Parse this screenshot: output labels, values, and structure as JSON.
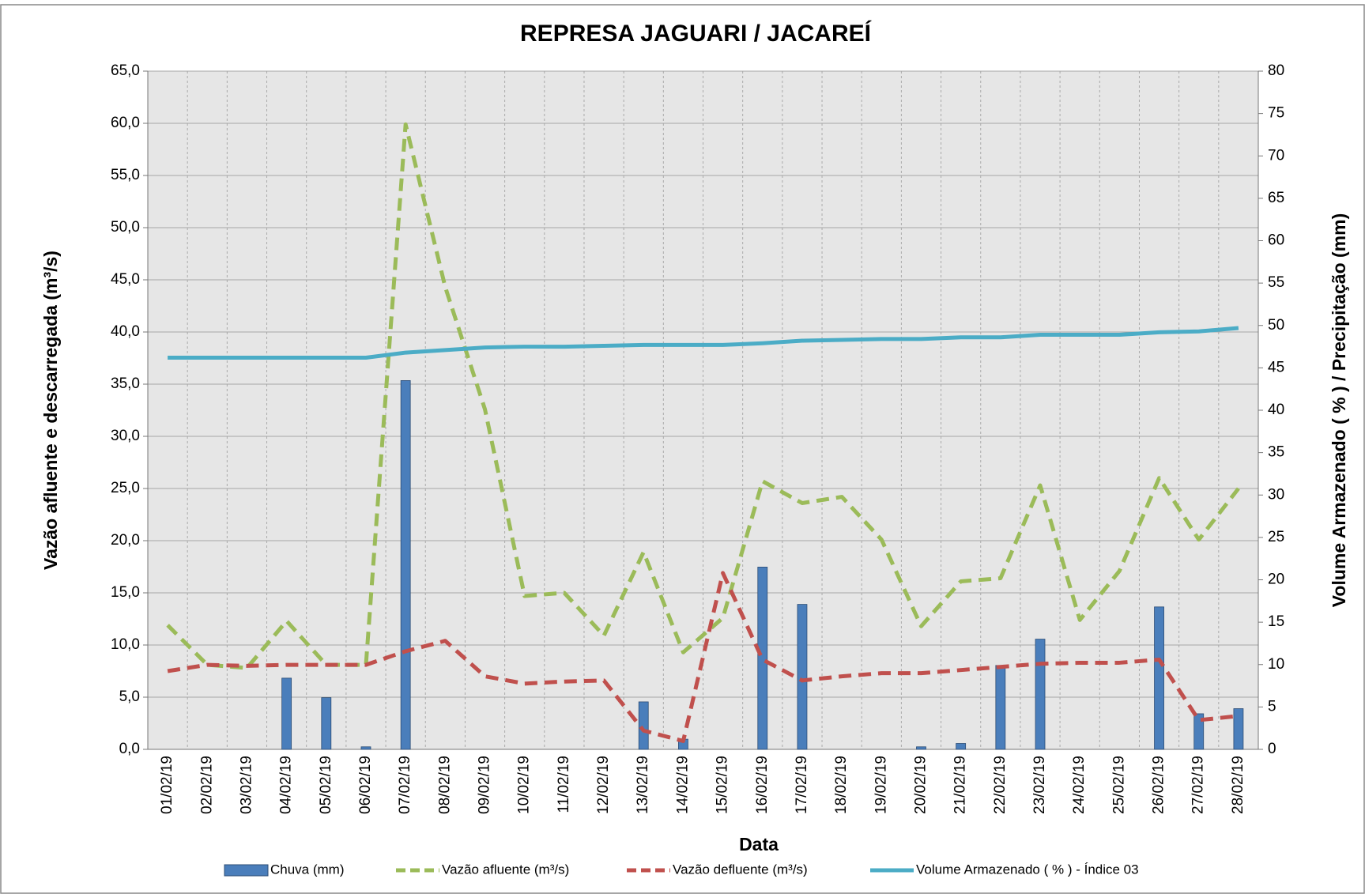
{
  "chart_data": {
    "type": "combo",
    "title": "REPRESA JAGUARI / JACAREÍ",
    "x_label": "Data",
    "y_label": "Vazão afluente e descarregada (m³/s)",
    "y2_label": "Volume Armazenado ( % ) / Precipitação  (mm)",
    "categories": [
      "01/02/19",
      "02/02/19",
      "03/02/19",
      "04/02/19",
      "05/02/19",
      "06/02/19",
      "07/02/19",
      "08/02/19",
      "09/02/19",
      "10/02/19",
      "11/02/19",
      "12/02/19",
      "13/02/19",
      "14/02/19",
      "15/02/19",
      "16/02/19",
      "17/02/19",
      "18/02/19",
      "19/02/19",
      "20/02/19",
      "21/02/19",
      "22/02/19",
      "23/02/19",
      "24/02/19",
      "25/02/19",
      "26/02/19",
      "27/02/19",
      "28/02/19"
    ],
    "ylim": [
      0,
      65
    ],
    "yticks": [
      {
        "value": 0,
        "label": "0,0"
      },
      {
        "value": 5,
        "label": "5,0"
      },
      {
        "value": 10,
        "label": "10,0"
      },
      {
        "value": 15,
        "label": "15,0"
      },
      {
        "value": 20,
        "label": "20,0"
      },
      {
        "value": 25,
        "label": "25,0"
      },
      {
        "value": 30,
        "label": "30,0"
      },
      {
        "value": 35,
        "label": "35,0"
      },
      {
        "value": 40,
        "label": "40,0"
      },
      {
        "value": 45,
        "label": "45,0"
      },
      {
        "value": 50,
        "label": "50,0"
      },
      {
        "value": 55,
        "label": "55,0"
      },
      {
        "value": 60,
        "label": "60,0"
      },
      {
        "value": 65,
        "label": "65,0"
      }
    ],
    "y2lim": [
      0,
      80
    ],
    "y2ticks": [
      0,
      5,
      10,
      15,
      20,
      25,
      30,
      35,
      40,
      45,
      50,
      55,
      60,
      65,
      70,
      75,
      80
    ],
    "grid": true,
    "legend": "bottom",
    "series": [
      {
        "name": "Chuva (mm)",
        "type": "bar",
        "axis": "y2",
        "color": "#4a7ebb",
        "values": [
          0,
          0,
          0,
          8.4,
          6.1,
          0.3,
          43.5,
          0,
          0,
          0,
          0,
          0,
          5.6,
          1.2,
          0,
          21.5,
          17.1,
          0,
          0,
          0.3,
          0.7,
          9.9,
          13.0,
          0,
          0,
          16.8,
          4.2,
          4.8
        ]
      },
      {
        "name": "Vazão afluente (m³/s)",
        "type": "line",
        "dash": true,
        "color": "#9bbb59",
        "values": [
          11.9,
          8.1,
          7.8,
          12.3,
          8.1,
          8.1,
          59.9,
          44.3,
          32.6,
          14.7,
          15.0,
          10.9,
          18.9,
          9.3,
          12.6,
          25.7,
          23.6,
          24.2,
          20.1,
          11.8,
          16.1,
          16.4,
          25.3,
          12.4,
          17.1,
          26.0,
          20.1,
          25.0
        ]
      },
      {
        "name": "Vazão defluente (m³/s)",
        "type": "line",
        "dash": true,
        "color": "#c0504d",
        "values": [
          7.5,
          8.1,
          8.0,
          8.1,
          8.1,
          8.1,
          9.4,
          10.4,
          7.0,
          6.3,
          6.5,
          6.6,
          1.8,
          0.8,
          16.9,
          8.6,
          6.6,
          7.0,
          7.3,
          7.3,
          7.6,
          7.9,
          8.2,
          8.3,
          8.3,
          8.6,
          2.8,
          3.2
        ]
      },
      {
        "name": "Volume Armazenado ( % ) - Índice 03",
        "type": "line",
        "dash": false,
        "axis": "y2",
        "color": "#4bacc6",
        "values": [
          46.2,
          46.2,
          46.2,
          46.2,
          46.2,
          46.2,
          46.8,
          47.1,
          47.4,
          47.5,
          47.5,
          47.6,
          47.7,
          47.7,
          47.7,
          47.9,
          48.2,
          48.3,
          48.4,
          48.4,
          48.6,
          48.6,
          48.9,
          48.9,
          48.9,
          49.2,
          49.3,
          49.7
        ]
      }
    ]
  }
}
